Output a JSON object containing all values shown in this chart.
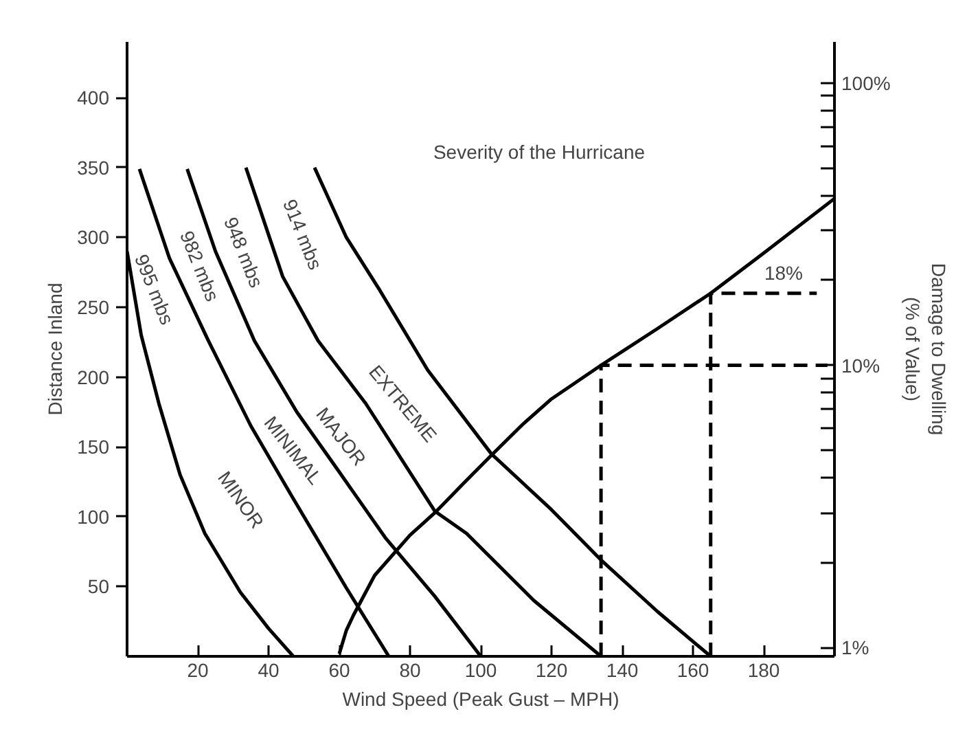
{
  "chart_data": {
    "type": "line",
    "xlabel": "Wind Speed (Peak Gust – MPH)",
    "ylabel": "Distance Inland",
    "y2label": "Damage to Dwelling (% of Value)",
    "xlim": [
      0,
      200
    ],
    "xticks": [
      20,
      40,
      60,
      80,
      100,
      120,
      140,
      160,
      180
    ],
    "ylim": [
      0,
      440
    ],
    "yticks": [
      50,
      100,
      150,
      200,
      250,
      300,
      350,
      400
    ],
    "y2lim": [
      0.93,
      140
    ],
    "log": "y2",
    "y2ticks": [
      {
        "value": 1,
        "label": "1%"
      },
      {
        "value": 2,
        "label": null
      },
      {
        "value": 3,
        "label": null
      },
      {
        "value": 4,
        "label": null
      },
      {
        "value": 5,
        "label": null
      },
      {
        "value": 6,
        "label": null
      },
      {
        "value": 7,
        "label": null
      },
      {
        "value": 8,
        "label": null
      },
      {
        "value": 9,
        "label": null
      },
      {
        "value": 10,
        "label": "10%"
      },
      {
        "value": 20,
        "label": null
      },
      {
        "value": 30,
        "label": null
      },
      {
        "value": 40,
        "label": null
      },
      {
        "value": 50,
        "label": null
      },
      {
        "value": 60,
        "label": null
      },
      {
        "value": 70,
        "label": null
      },
      {
        "value": 80,
        "label": null
      },
      {
        "value": 90,
        "label": null
      },
      {
        "value": 100,
        "label": "100%"
      }
    ],
    "grid": false,
    "marker": "none",
    "line_style": "solid",
    "series": [
      {
        "color": "#000000",
        "x": [
          0,
          4,
          9,
          15,
          22,
          32,
          40,
          47
        ],
        "values": [
          290,
          230,
          181,
          130,
          88,
          46,
          20,
          0
        ]
      },
      {
        "color": "#000000",
        "x": [
          3.5,
          12,
          23,
          35,
          46.5,
          62,
          74
        ],
        "values": [
          349,
          285,
          226,
          165,
          115,
          49,
          0
        ]
      },
      {
        "color": "#000000",
        "x": [
          17,
          25,
          36,
          48,
          60,
          73,
          87,
          100
        ],
        "values": [
          349,
          290,
          226,
          175,
          132,
          85,
          43,
          0
        ]
      },
      {
        "color": "#000000",
        "x": [
          33.6,
          44,
          54,
          67.5,
          87,
          96,
          115,
          134
        ],
        "values": [
          350,
          272,
          226,
          181,
          104,
          88,
          40,
          0
        ]
      },
      {
        "color": "#000000",
        "x": [
          53,
          62,
          71.5,
          85,
          103,
          120,
          134,
          150,
          165
        ],
        "values": [
          350,
          300,
          262,
          205,
          145,
          105,
          69,
          32,
          0
        ]
      },
      {
        "color": "#000000",
        "axis": "y2",
        "x": [
          60,
          62,
          64,
          70,
          80,
          87,
          95,
          103,
          112,
          120,
          134,
          150,
          165,
          180,
          200
        ],
        "values": [
          0.95,
          1.15,
          1.3,
          1.8,
          2.5,
          3.0,
          3.8,
          4.8,
          6.2,
          7.6,
          10,
          13.5,
          18,
          25,
          39
        ]
      },
      {
        "color": "#000000",
        "axis": "y2",
        "line_style": "dashed",
        "x": [
          134,
          134,
          198
        ],
        "values": [
          0.93,
          10,
          10
        ]
      },
      {
        "color": "#000000",
        "axis": "y2",
        "line_style": "dashed",
        "x": [
          165,
          165,
          195
        ],
        "values": [
          0.93,
          18,
          18
        ]
      }
    ],
    "annotations": [
      "995 mbs",
      "982 mbs",
      "948 mbs",
      "914 mbs",
      "MINOR",
      "MINIMAL",
      "MAJOR",
      "EXTREME",
      "Severity of the Hurricane",
      "18%"
    ]
  }
}
